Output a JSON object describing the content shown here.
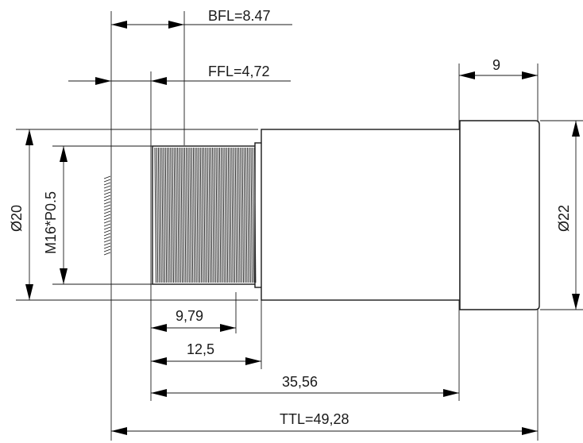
{
  "dimensions": {
    "bfl": "BFL=8.47",
    "ffl": "FFL=4,72",
    "body_length": "9",
    "dia_flange": "Ø20",
    "thread": "M16*P0.5",
    "dia_barrel": "Ø22",
    "thread_len": "9,79",
    "mount_len": "12,5",
    "barrel_len": "35,56",
    "ttl": "TTL=49,28"
  }
}
